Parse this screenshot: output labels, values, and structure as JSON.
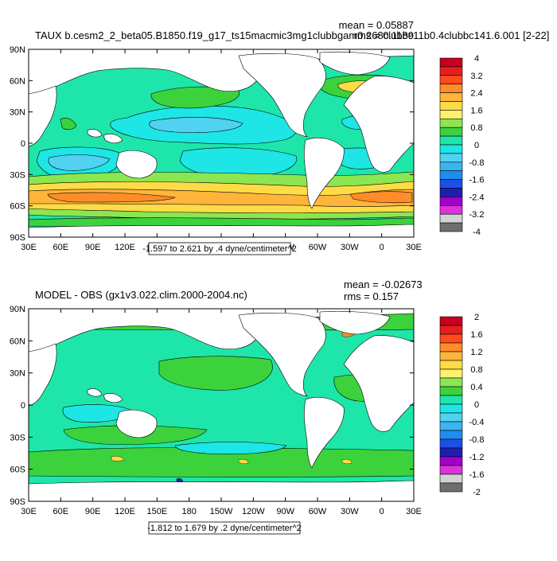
{
  "panels": [
    {
      "title": "TAUX b.cesm2_2_beta05.B1850.f19_g17_ts15macmic3mg1clubbgam0.268clubbc11b0.4clubbc141.6.001 [2-22]",
      "mean": "mean = 0.05887",
      "rms": "rms = 0.1189",
      "range_label": "-1.597 to 2.621 by .4 dyne/centimeter^2",
      "colorbar": {
        "labels": [
          "4",
          "3.2",
          "2.4",
          "1.6",
          "0.8",
          "0",
          "-0.8",
          "-1.6",
          "-2.4",
          "-3.2",
          "-4"
        ],
        "colors": [
          "#c8001e",
          "#e61e1e",
          "#ff4a1e",
          "#ff8c28",
          "#ffb43c",
          "#ffdc46",
          "#fff06e",
          "#8ce650",
          "#3cd23c",
          "#1ee6aa",
          "#1ee6e6",
          "#50d2f0",
          "#3cb4f0",
          "#1e8cf0",
          "#1e50e6",
          "#1e1eb4",
          "#a000c8",
          "#dc32dc",
          "#d2d2d2",
          "#6e6e6e"
        ]
      }
    },
    {
      "title": "MODEL - OBS (gx1v3.022.clim.2000-2004.nc)",
      "mean": "mean = -0.02673",
      "rms": "rms = 0.157",
      "range_label": "-1.812 to 1.679 by .2 dyne/centimeter^2",
      "colorbar": {
        "labels": [
          "2",
          "1.6",
          "1.2",
          "0.8",
          "0.4",
          "0",
          "-0.4",
          "-0.8",
          "-1.2",
          "-1.6",
          "-2"
        ],
        "colors": [
          "#c8001e",
          "#e61e1e",
          "#ff4a1e",
          "#ff8c28",
          "#ffb43c",
          "#ffdc46",
          "#fff06e",
          "#8ce650",
          "#3cd23c",
          "#1ee6aa",
          "#1ee6e6",
          "#50d2f0",
          "#3cb4f0",
          "#1e8cf0",
          "#1e50e6",
          "#1e1eb4",
          "#a000c8",
          "#dc32dc",
          "#d2d2d2",
          "#6e6e6e"
        ]
      }
    }
  ],
  "axes": {
    "lat_labels": [
      "90N",
      "60N",
      "30N",
      "0",
      "30S",
      "60S",
      "90S"
    ],
    "lon_labels": [
      "30E",
      "60E",
      "90E",
      "120E",
      "150E",
      "180",
      "150W",
      "120W",
      "90W",
      "60W",
      "30W",
      "0",
      "30E"
    ]
  },
  "colors": {
    "ocean_base_top": "#1ee6aa",
    "ocean_base_bottom": "#1ee6aa",
    "land": "#ffffff",
    "frame": "#000000"
  }
}
